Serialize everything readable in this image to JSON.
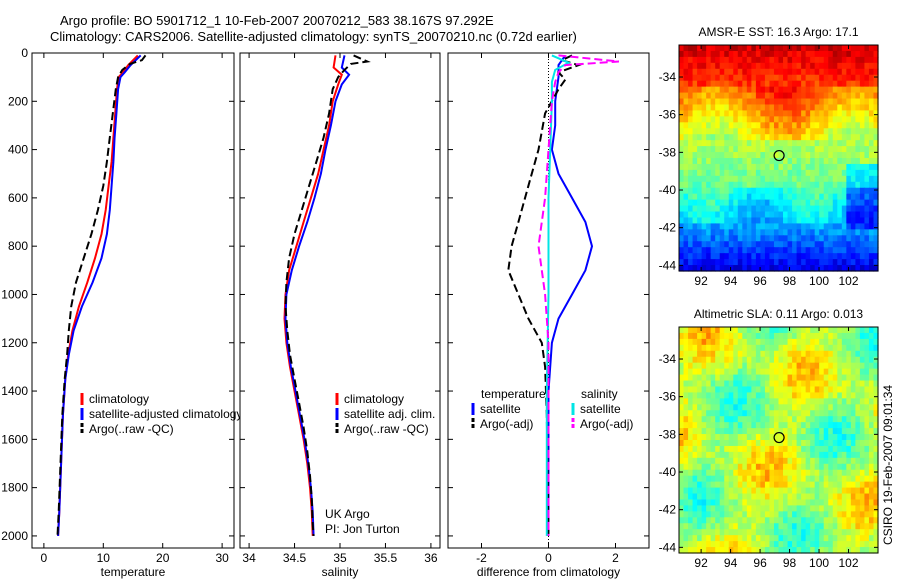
{
  "title_line1": "Argo profile: BO 5901712_1 10-Feb-2007 20070212_583 38.167S 97.292E",
  "title_line2": "Climatology: CARS2006. Satellite-adjusted climatology: synTS_20070210.nc (0.72d earlier)",
  "side_label": "CSIRO 19-Feb-2007 09:01:34",
  "colors": {
    "climatology": "#ff0000",
    "satellite": "#0000ff",
    "argo": "#000000",
    "sat_salinity": "#00e5e5",
    "argo_salinity_adj": "#ff00ff"
  },
  "chart_data": [
    {
      "type": "line",
      "xlabel": "temperature",
      "ylabel": "",
      "xlim": [
        -2,
        32
      ],
      "ylim": [
        2050,
        0
      ],
      "xticks": [
        0,
        10,
        20,
        30
      ],
      "yticks": [
        0,
        200,
        400,
        600,
        800,
        1000,
        1200,
        1400,
        1600,
        1800,
        2000
      ],
      "legend": [
        "climatology",
        "satellite-adjusted climatology",
        "Argo(..raw -QC)"
      ],
      "legend_position": "lower-right",
      "series": [
        {
          "name": "climatology",
          "points": [
            [
              15.8,
              10
            ],
            [
              14.2,
              50
            ],
            [
              13.3,
              80
            ],
            [
              12.6,
              100
            ],
            [
              12.3,
              150
            ],
            [
              12.0,
              250
            ],
            [
              11.7,
              350
            ],
            [
              11.4,
              450
            ],
            [
              10.9,
              550
            ],
            [
              10.4,
              650
            ],
            [
              9.7,
              750
            ],
            [
              8.6,
              850
            ],
            [
              7.3,
              950
            ],
            [
              5.9,
              1050
            ],
            [
              4.8,
              1150
            ],
            [
              4.1,
              1250
            ],
            [
              3.6,
              1350
            ],
            [
              3.2,
              1500
            ],
            [
              2.9,
              1700
            ],
            [
              2.6,
              1900
            ],
            [
              2.4,
              2000
            ]
          ]
        },
        {
          "name": "satellite-adjusted climatology",
          "points": [
            [
              16.3,
              10
            ],
            [
              14.6,
              50
            ],
            [
              13.6,
              80
            ],
            [
              12.9,
              100
            ],
            [
              12.5,
              150
            ],
            [
              12.2,
              250
            ],
            [
              11.9,
              350
            ],
            [
              11.7,
              450
            ],
            [
              11.4,
              550
            ],
            [
              11.1,
              650
            ],
            [
              10.6,
              750
            ],
            [
              9.7,
              850
            ],
            [
              8.2,
              950
            ],
            [
              6.4,
              1050
            ],
            [
              5.0,
              1150
            ],
            [
              4.2,
              1250
            ],
            [
              3.6,
              1350
            ],
            [
              3.2,
              1500
            ],
            [
              2.9,
              1700
            ],
            [
              2.6,
              1900
            ],
            [
              2.4,
              2000
            ]
          ]
        },
        {
          "name": "Argo(..raw -QC)",
          "dash": true,
          "points": [
            [
              17.1,
              10
            ],
            [
              16.5,
              30
            ],
            [
              14.5,
              45
            ],
            [
              13.2,
              70
            ],
            [
              12.5,
              100
            ],
            [
              12.1,
              150
            ],
            [
              11.6,
              250
            ],
            [
              11.1,
              350
            ],
            [
              10.6,
              450
            ],
            [
              10.0,
              550
            ],
            [
              9.1,
              650
            ],
            [
              8.0,
              750
            ],
            [
              6.7,
              850
            ],
            [
              5.4,
              950
            ],
            [
              4.6,
              1050
            ],
            [
              4.2,
              1150
            ],
            [
              3.9,
              1250
            ],
            [
              3.5,
              1350
            ],
            [
              3.1,
              1500
            ],
            [
              2.8,
              1700
            ],
            [
              2.5,
              1900
            ],
            [
              2.3,
              2000
            ]
          ]
        }
      ]
    },
    {
      "type": "line",
      "xlabel": "salinity",
      "ylabel": "",
      "xlim": [
        33.9,
        36.1
      ],
      "ylim": [
        2050,
        0
      ],
      "xticks": [
        34,
        34.5,
        35,
        35.5,
        36
      ],
      "legend": [
        "climatology",
        "satellite adj. clim.",
        "Argo(..raw -QC)"
      ],
      "legend_position": "lower-right",
      "annotation": [
        "UK Argo",
        "PI: Jon Turton"
      ],
      "series": [
        {
          "name": "climatology",
          "points": [
            [
              34.95,
              10
            ],
            [
              34.93,
              60
            ],
            [
              35.02,
              90
            ],
            [
              34.98,
              130
            ],
            [
              34.92,
              200
            ],
            [
              34.88,
              300
            ],
            [
              34.82,
              400
            ],
            [
              34.76,
              500
            ],
            [
              34.68,
              600
            ],
            [
              34.6,
              700
            ],
            [
              34.52,
              800
            ],
            [
              34.44,
              900
            ],
            [
              34.4,
              1000
            ],
            [
              34.39,
              1100
            ],
            [
              34.41,
              1200
            ],
            [
              34.45,
              1300
            ],
            [
              34.5,
              1400
            ],
            [
              34.55,
              1500
            ],
            [
              34.6,
              1600
            ],
            [
              34.64,
              1700
            ],
            [
              34.67,
              1800
            ],
            [
              34.69,
              1900
            ],
            [
              34.7,
              2000
            ]
          ]
        },
        {
          "name": "satellite adj. clim.",
          "points": [
            [
              35.05,
              10
            ],
            [
              35.02,
              60
            ],
            [
              35.1,
              90
            ],
            [
              35.02,
              130
            ],
            [
              34.95,
              200
            ],
            [
              34.9,
              300
            ],
            [
              34.84,
              400
            ],
            [
              34.79,
              500
            ],
            [
              34.72,
              600
            ],
            [
              34.64,
              700
            ],
            [
              34.55,
              800
            ],
            [
              34.47,
              900
            ],
            [
              34.41,
              1000
            ],
            [
              34.4,
              1100
            ],
            [
              34.42,
              1200
            ],
            [
              34.46,
              1300
            ],
            [
              34.51,
              1400
            ],
            [
              34.56,
              1500
            ],
            [
              34.61,
              1600
            ],
            [
              34.65,
              1700
            ],
            [
              34.68,
              1800
            ],
            [
              34.7,
              1900
            ],
            [
              34.71,
              2000
            ]
          ]
        },
        {
          "name": "Argo(..raw -QC)",
          "dash": true,
          "points": [
            [
              35.15,
              10
            ],
            [
              35.3,
              35
            ],
            [
              35.12,
              45
            ],
            [
              35.05,
              70
            ],
            [
              34.98,
              100
            ],
            [
              34.92,
              150
            ],
            [
              34.88,
              250
            ],
            [
              34.82,
              350
            ],
            [
              34.74,
              450
            ],
            [
              34.66,
              550
            ],
            [
              34.58,
              650
            ],
            [
              34.5,
              750
            ],
            [
              34.44,
              850
            ],
            [
              34.41,
              950
            ],
            [
              34.4,
              1050
            ],
            [
              34.42,
              1150
            ],
            [
              34.45,
              1250
            ],
            [
              34.5,
              1350
            ],
            [
              34.55,
              1450
            ],
            [
              34.6,
              1550
            ],
            [
              34.64,
              1650
            ],
            [
              34.67,
              1750
            ],
            [
              34.69,
              1850
            ],
            [
              34.7,
              1950
            ],
            [
              34.71,
              2000
            ]
          ]
        }
      ]
    },
    {
      "type": "line",
      "xlabel": "difference from climatology",
      "ylabel": "",
      "xlim": [
        -3.0,
        3.0
      ],
      "ylim": [
        2050,
        0
      ],
      "xticks": [
        -2,
        0,
        2
      ],
      "legend_title_left": "temperature",
      "legend_title_right": "salinity",
      "legend": [
        "satellite",
        "Argo(-adj)",
        "satellite",
        "Argo(-adj)"
      ],
      "legend_position": "lower",
      "series": [
        {
          "name": "temperature satellite",
          "color": "#0000ff",
          "points": [
            [
              0.5,
              10
            ],
            [
              0.3,
              50
            ],
            [
              0.3,
              100
            ],
            [
              0.2,
              200
            ],
            [
              0.2,
              300
            ],
            [
              0.1,
              400
            ],
            [
              0.3,
              500
            ],
            [
              0.7,
              600
            ],
            [
              1.1,
              700
            ],
            [
              1.3,
              800
            ],
            [
              1.1,
              900
            ],
            [
              0.7,
              1000
            ],
            [
              0.3,
              1100
            ],
            [
              0.1,
              1200
            ],
            [
              0.0,
              1400
            ],
            [
              0.0,
              2000
            ]
          ]
        },
        {
          "name": "temperature Argo(-adj)",
          "color": "#000000",
          "dash": true,
          "points": [
            [
              0.7,
              10
            ],
            [
              0.4,
              30
            ],
            [
              0.9,
              50
            ],
            [
              0.3,
              80
            ],
            [
              0.5,
              110
            ],
            [
              0.3,
              150
            ],
            [
              -0.1,
              250
            ],
            [
              -0.3,
              400
            ],
            [
              -0.6,
              550
            ],
            [
              -0.9,
              700
            ],
            [
              -1.1,
              800
            ],
            [
              -1.2,
              900
            ],
            [
              -0.9,
              1000
            ],
            [
              -0.6,
              1100
            ],
            [
              -0.2,
              1200
            ],
            [
              -0.1,
              1300
            ],
            [
              -0.05,
              1500
            ],
            [
              0.0,
              2000
            ]
          ]
        },
        {
          "name": "salinity satellite",
          "color": "#00e5e5",
          "points": [
            [
              0.1,
              10
            ],
            [
              0.6,
              40
            ],
            [
              0.2,
              70
            ],
            [
              0.1,
              120
            ],
            [
              0.1,
              200
            ],
            [
              0.05,
              400
            ],
            [
              0.0,
              600
            ],
            [
              0.0,
              1000
            ],
            [
              -0.05,
              1400
            ],
            [
              -0.05,
              2000
            ]
          ]
        },
        {
          "name": "salinity Argo(-adj)",
          "color": "#ff00ff",
          "dash": true,
          "points": [
            [
              0.3,
              10
            ],
            [
              2.1,
              35
            ],
            [
              0.5,
              50
            ],
            [
              0.3,
              80
            ],
            [
              0.2,
              120
            ],
            [
              0.1,
              200
            ],
            [
              0.0,
              400
            ],
            [
              -0.1,
              600
            ],
            [
              -0.2,
              700
            ],
            [
              -0.3,
              800
            ],
            [
              -0.1,
              1000
            ],
            [
              0.0,
              1200
            ],
            [
              0.0,
              2000
            ]
          ]
        }
      ]
    },
    {
      "type": "heatmap",
      "title": "AMSR-E SST: 16.3 Argo: 17.1",
      "xlim": [
        90.5,
        104
      ],
      "ylim": [
        -44.3,
        -32.3
      ],
      "xticks": [
        92,
        94,
        96,
        98,
        100,
        102
      ],
      "yticks": [
        -34,
        -36,
        -38,
        -40,
        -42,
        -44
      ],
      "marker": [
        97.29,
        -38.17
      ],
      "colormap": "jet"
    },
    {
      "type": "heatmap",
      "title": "Altimetric SLA: 0.11 Argo: 0.013",
      "xlim": [
        90.5,
        104
      ],
      "ylim": [
        -44.3,
        -32.3
      ],
      "xticks": [
        92,
        94,
        96,
        98,
        100,
        102
      ],
      "yticks": [
        -34,
        -36,
        -38,
        -40,
        -42,
        -44
      ],
      "marker": [
        97.29,
        -38.17
      ],
      "colormap": "jet"
    }
  ]
}
